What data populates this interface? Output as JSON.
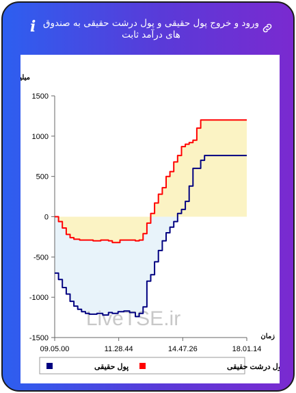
{
  "header": {
    "title": "ورود و خروج پول حقیقی و پول درشت حقیقی به صندوق های درآمد ثابت",
    "info_icon": "info-icon",
    "link_icon": "link-icon"
  },
  "colors": {
    "frame_gradient": [
      "#2d5ff0",
      "#7a2ad0"
    ],
    "real_money": "#000080",
    "big_real_money": "#ff0000",
    "fill_above": "#fbf3c4",
    "fill_below": "#e8f3fa"
  },
  "chart_data": {
    "type": "line",
    "ylabel": "میلیارد تومان",
    "xlabel": "زمان",
    "ylim": [
      -1500,
      1500
    ],
    "yticks": [
      1500,
      1000,
      500,
      0,
      -500,
      -1000,
      -1500
    ],
    "xticks": [
      "09.05.00",
      "11.28.44",
      "14.47.26",
      "18.01.14"
    ],
    "watermark": "LiveTSE.ir",
    "grid": false,
    "legend_position": "bottom",
    "series": [
      {
        "name": "پول حقیقی",
        "color": "#000080",
        "t": [
          0,
          0.02,
          0.04,
          0.06,
          0.08,
          0.1,
          0.12,
          0.14,
          0.16,
          0.18,
          0.2,
          0.22,
          0.25,
          0.28,
          0.3,
          0.33,
          0.36,
          0.39,
          0.42,
          0.44,
          0.46,
          0.48,
          0.5,
          0.52,
          0.54,
          0.56,
          0.58,
          0.6,
          0.62,
          0.64,
          0.66,
          0.68,
          0.7,
          0.72,
          0.74,
          0.76,
          0.78,
          1.0
        ],
        "values": [
          -700,
          -780,
          -880,
          -960,
          -1050,
          -1110,
          -1150,
          -1180,
          -1200,
          -1210,
          -1210,
          -1200,
          -1220,
          -1190,
          -1200,
          -1180,
          -1170,
          -1190,
          -1240,
          -1200,
          -1120,
          -800,
          -720,
          -560,
          -420,
          -300,
          -200,
          -130,
          -60,
          40,
          90,
          190,
          380,
          600,
          600,
          700,
          760,
          760
        ]
      },
      {
        "name": "پول درشت حقیقی",
        "color": "#ff0000",
        "t": [
          0,
          0.02,
          0.04,
          0.06,
          0.08,
          0.1,
          0.13,
          0.16,
          0.2,
          0.24,
          0.28,
          0.3,
          0.34,
          0.38,
          0.42,
          0.44,
          0.46,
          0.48,
          0.5,
          0.52,
          0.54,
          0.56,
          0.58,
          0.6,
          0.62,
          0.64,
          0.66,
          0.68,
          0.7,
          0.72,
          0.74,
          0.76,
          1.0
        ],
        "values": [
          0,
          -60,
          -140,
          -220,
          -260,
          -280,
          -290,
          -290,
          -300,
          -290,
          -300,
          -320,
          -290,
          -290,
          -300,
          -290,
          -210,
          -80,
          40,
          170,
          280,
          360,
          500,
          560,
          680,
          760,
          870,
          900,
          920,
          950,
          1100,
          1200,
          1200
        ]
      }
    ]
  },
  "legend": {
    "items": [
      {
        "label": "پول حقیقی",
        "color": "#000080"
      },
      {
        "label": "پول درشت حقیقی",
        "color": "#ff0000"
      }
    ]
  }
}
